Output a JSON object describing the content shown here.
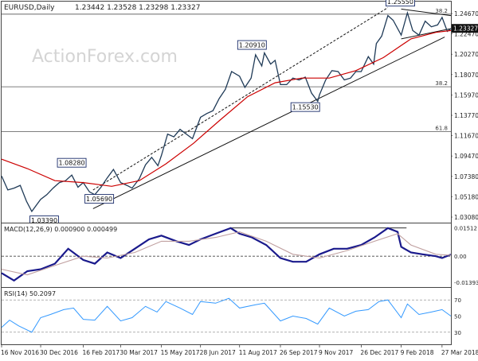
{
  "chart_data": [
    {
      "type": "line",
      "panel": "price",
      "title": "EURUSD,Daily",
      "ohlc_label": "1.23442 1.23528 1.23298 1.23327",
      "watermark": "ActionForex.com",
      "x_dates": [
        "2016-11-16",
        "2016-12-30",
        "2017-02-16",
        "2017-03-30",
        "2017-05-15",
        "2017-06-28",
        "2017-08-11",
        "2017-09-26",
        "2017-11-09",
        "2017-12-26",
        "2018-02-09",
        "2018-03-27",
        "2018-04-06"
      ],
      "x_tick_labels": [
        "16 Nov 2016",
        "30 Dec 2016",
        "16 Feb 2017",
        "30 Mar 2017",
        "15 May 2017",
        "28 Jun 2017",
        "11 Aug 2017",
        "26 Sep 2017",
        "9 Nov 2017",
        "26 Dec 2017",
        "9 Feb 2018",
        "27 Mar 2018"
      ],
      "y_tick_labels": [
        "1.24670",
        "1.22470",
        "1.20270",
        "1.18070",
        "1.15970",
        "1.13770",
        "1.11670",
        "1.09470",
        "1.07380",
        "1.05180",
        "1.03080"
      ],
      "ylim": [
        1.025,
        1.262
      ],
      "last_price": "1.23327",
      "series": [
        {
          "role": "price",
          "color": "#1f3a57",
          "points": [
            [
              "2016-11-16",
              1.075
            ],
            [
              "2016-11-23",
              1.06
            ],
            [
              "2016-11-30",
              1.062
            ],
            [
              "2016-12-07",
              1.065
            ],
            [
              "2016-12-14",
              1.048
            ],
            [
              "2016-12-20",
              1.037
            ],
            [
              "2016-12-30",
              1.05
            ],
            [
              "2017-01-06",
              1.055
            ],
            [
              "2017-01-13",
              1.062
            ],
            [
              "2017-01-20",
              1.068
            ],
            [
              "2017-01-27",
              1.07
            ],
            [
              "2017-02-03",
              1.076
            ],
            [
              "2017-02-10",
              1.063
            ],
            [
              "2017-02-16",
              1.068
            ],
            [
              "2017-02-23",
              1.058
            ],
            [
              "2017-03-01",
              1.055
            ],
            [
              "2017-03-08",
              1.063
            ],
            [
              "2017-03-15",
              1.073
            ],
            [
              "2017-03-22",
              1.082
            ],
            [
              "2017-03-30",
              1.068
            ],
            [
              "2017-04-06",
              1.065
            ],
            [
              "2017-04-12",
              1.062
            ],
            [
              "2017-04-20",
              1.072
            ],
            [
              "2017-04-27",
              1.087
            ],
            [
              "2017-05-04",
              1.095
            ],
            [
              "2017-05-11",
              1.086
            ],
            [
              "2017-05-15",
              1.097
            ],
            [
              "2017-05-22",
              1.12
            ],
            [
              "2017-05-29",
              1.117
            ],
            [
              "2017-06-05",
              1.125
            ],
            [
              "2017-06-12",
              1.12
            ],
            [
              "2017-06-19",
              1.115
            ],
            [
              "2017-06-28",
              1.138
            ],
            [
              "2017-07-05",
              1.142
            ],
            [
              "2017-07-12",
              1.145
            ],
            [
              "2017-07-19",
              1.158
            ],
            [
              "2017-07-26",
              1.168
            ],
            [
              "2017-08-02",
              1.187
            ],
            [
              "2017-08-11",
              1.182
            ],
            [
              "2017-08-17",
              1.17
            ],
            [
              "2017-08-24",
              1.18
            ],
            [
              "2017-08-29",
              1.205
            ],
            [
              "2017-09-05",
              1.193
            ],
            [
              "2017-09-08",
              1.207
            ],
            [
              "2017-09-15",
              1.195
            ],
            [
              "2017-09-20",
              1.199
            ],
            [
              "2017-09-26",
              1.173
            ],
            [
              "2017-10-03",
              1.173
            ],
            [
              "2017-10-10",
              1.18
            ],
            [
              "2017-10-17",
              1.178
            ],
            [
              "2017-10-24",
              1.181
            ],
            [
              "2017-10-31",
              1.164
            ],
            [
              "2017-11-07",
              1.155
            ],
            [
              "2017-11-09",
              1.162
            ],
            [
              "2017-11-16",
              1.178
            ],
            [
              "2017-11-23",
              1.188
            ],
            [
              "2017-11-30",
              1.187
            ],
            [
              "2017-12-07",
              1.178
            ],
            [
              "2017-12-14",
              1.18
            ],
            [
              "2017-12-20",
              1.187
            ],
            [
              "2017-12-26",
              1.187
            ],
            [
              "2018-01-03",
              1.203
            ],
            [
              "2018-01-09",
              1.195
            ],
            [
              "2018-01-12",
              1.217
            ],
            [
              "2018-01-18",
              1.225
            ],
            [
              "2018-01-25",
              1.247
            ],
            [
              "2018-01-31",
              1.242
            ],
            [
              "2018-02-09",
              1.226
            ],
            [
              "2018-02-16",
              1.25
            ],
            [
              "2018-02-22",
              1.231
            ],
            [
              "2018-03-01",
              1.226
            ],
            [
              "2018-03-08",
              1.241
            ],
            [
              "2018-03-15",
              1.235
            ],
            [
              "2018-03-22",
              1.237
            ],
            [
              "2018-03-27",
              1.245
            ],
            [
              "2018-04-02",
              1.23
            ],
            [
              "2018-04-06",
              1.233
            ]
          ]
        },
        {
          "role": "moving-average",
          "color": "#cc0000",
          "points": [
            [
              "2016-11-16",
              1.093
            ],
            [
              "2016-12-15",
              1.083
            ],
            [
              "2017-01-15",
              1.07
            ],
            [
              "2017-02-16",
              1.068
            ],
            [
              "2017-03-20",
              1.064
            ],
            [
              "2017-04-20",
              1.07
            ],
            [
              "2017-05-20",
              1.088
            ],
            [
              "2017-06-20",
              1.11
            ],
            [
              "2017-07-20",
              1.135
            ],
            [
              "2017-08-20",
              1.16
            ],
            [
              "2017-09-20",
              1.175
            ],
            [
              "2017-10-20",
              1.18
            ],
            [
              "2017-11-20",
              1.18
            ],
            [
              "2017-12-20",
              1.188
            ],
            [
              "2018-01-20",
              1.202
            ],
            [
              "2018-02-20",
              1.222
            ],
            [
              "2018-03-20",
              1.229
            ],
            [
              "2018-04-06",
              1.231
            ]
          ]
        }
      ],
      "annotations": [
        {
          "label": "1.25550",
          "date": "2018-02-08",
          "price": 1.2555
        },
        {
          "label": "1.20910",
          "date": "2017-08-25",
          "price": 1.2091
        },
        {
          "label": "1.15530",
          "date": "2017-10-24",
          "price": 1.1553
        },
        {
          "label": "1.08280",
          "date": "2017-02-03",
          "price": 1.0828
        },
        {
          "label": "1.05690",
          "date": "2017-03-06",
          "price": 1.0569
        },
        {
          "label": "1.03390",
          "date": "2017-01-03",
          "price": 1.0339
        }
      ],
      "fib_levels": [
        {
          "label": "38.2",
          "price": 1.2485
        },
        {
          "label": "38.2",
          "price": 1.1707
        },
        {
          "label": "61.8",
          "price": 1.1225
        }
      ],
      "trendlines": [
        {
          "role": "lower-channel",
          "from": [
            "2017-02-27",
            1.04
          ],
          "to": [
            "2018-03-30",
            1.224
          ]
        },
        {
          "role": "upper-channel",
          "from": [
            "2017-02-27",
            1.06
          ],
          "to": [
            "2018-01-25",
            1.2555
          ]
        },
        {
          "role": "triangle-top",
          "from": [
            "2018-02-09",
            1.254
          ],
          "to": [
            "2018-04-06",
            1.247
          ]
        },
        {
          "role": "triangle-bottom",
          "from": [
            "2018-02-09",
            1.222
          ],
          "to": [
            "2018-04-06",
            1.233
          ]
        }
      ]
    },
    {
      "type": "line",
      "panel": "macd",
      "title": "MACD(12,26,9) 0.000900 0.000499",
      "y_tick_labels": [
        "0.01512",
        "0.00",
        "-0.01393"
      ],
      "ylim": [
        -0.0165,
        0.0175
      ],
      "zero_line": 0.0,
      "resistance_line": 0.0151,
      "series": [
        {
          "role": "macd",
          "color": "#1a1a8c",
          "points": [
            [
              "2016-11-16",
              -0.009
            ],
            [
              "2016-11-30",
              -0.013
            ],
            [
              "2016-12-15",
              -0.008
            ],
            [
              "2016-12-30",
              -0.007
            ],
            [
              "2017-01-15",
              -0.004
            ],
            [
              "2017-01-30",
              0.004
            ],
            [
              "2017-02-16",
              -0.002
            ],
            [
              "2017-03-01",
              -0.004
            ],
            [
              "2017-03-15",
              0.002
            ],
            [
              "2017-03-30",
              -0.001
            ],
            [
              "2017-04-15",
              0.004
            ],
            [
              "2017-05-01",
              0.009
            ],
            [
              "2017-05-15",
              0.011
            ],
            [
              "2017-06-01",
              0.008
            ],
            [
              "2017-06-15",
              0.006
            ],
            [
              "2017-06-28",
              0.009
            ],
            [
              "2017-07-15",
              0.012
            ],
            [
              "2017-08-01",
              0.015
            ],
            [
              "2017-08-11",
              0.012
            ],
            [
              "2017-08-25",
              0.01
            ],
            [
              "2017-09-10",
              0.006
            ],
            [
              "2017-09-26",
              -0.001
            ],
            [
              "2017-10-10",
              -0.003
            ],
            [
              "2017-10-25",
              -0.003
            ],
            [
              "2017-11-09",
              0.001
            ],
            [
              "2017-11-25",
              0.004
            ],
            [
              "2017-12-10",
              0.004
            ],
            [
              "2017-12-26",
              0.006
            ],
            [
              "2018-01-10",
              0.01
            ],
            [
              "2018-01-25",
              0.015
            ],
            [
              "2018-02-05",
              0.013
            ],
            [
              "2018-02-09",
              0.005
            ],
            [
              "2018-02-20",
              0.002
            ],
            [
              "2018-03-05",
              0.001
            ],
            [
              "2018-03-20",
              0.0
            ],
            [
              "2018-03-27",
              -0.001
            ],
            [
              "2018-04-06",
              0.0009
            ]
          ]
        },
        {
          "role": "signal",
          "color": "#c0a0a0",
          "points": [
            [
              "2016-11-16",
              -0.007
            ],
            [
              "2016-12-15",
              -0.01
            ],
            [
              "2017-01-15",
              -0.005
            ],
            [
              "2017-02-16",
              0.0
            ],
            [
              "2017-03-15",
              -0.001
            ],
            [
              "2017-04-15",
              0.002
            ],
            [
              "2017-05-15",
              0.008
            ],
            [
              "2017-06-15",
              0.008
            ],
            [
              "2017-07-15",
              0.01
            ],
            [
              "2017-08-11",
              0.013
            ],
            [
              "2017-09-10",
              0.008
            ],
            [
              "2017-10-10",
              0.001
            ],
            [
              "2017-11-09",
              -0.001
            ],
            [
              "2017-12-10",
              0.003
            ],
            [
              "2018-01-10",
              0.008
            ],
            [
              "2018-02-05",
              0.012
            ],
            [
              "2018-02-20",
              0.006
            ],
            [
              "2018-03-20",
              0.001
            ],
            [
              "2018-04-06",
              0.0005
            ]
          ]
        }
      ]
    },
    {
      "type": "line",
      "panel": "rsi",
      "title": "RSI(14) 50.2097",
      "y_tick_labels": [
        "70",
        "50",
        "30"
      ],
      "ylim": [
        15,
        85
      ],
      "levels": [
        70,
        30
      ],
      "series": [
        {
          "role": "rsi",
          "color": "#3399ff",
          "points": [
            [
              "2016-11-16",
              36
            ],
            [
              "2016-11-25",
              45
            ],
            [
              "2016-12-05",
              38
            ],
            [
              "2016-12-20",
              30
            ],
            [
              "2016-12-30",
              48
            ],
            [
              "2017-01-10",
              52
            ],
            [
              "2017-01-25",
              58
            ],
            [
              "2017-02-05",
              60
            ],
            [
              "2017-02-16",
              46
            ],
            [
              "2017-03-01",
              45
            ],
            [
              "2017-03-15",
              62
            ],
            [
              "2017-03-30",
              44
            ],
            [
              "2017-04-12",
              48
            ],
            [
              "2017-04-27",
              62
            ],
            [
              "2017-05-10",
              55
            ],
            [
              "2017-05-20",
              68
            ],
            [
              "2017-06-05",
              60
            ],
            [
              "2017-06-19",
              52
            ],
            [
              "2017-06-28",
              68
            ],
            [
              "2017-07-15",
              66
            ],
            [
              "2017-07-30",
              72
            ],
            [
              "2017-08-11",
              60
            ],
            [
              "2017-08-29",
              64
            ],
            [
              "2017-09-08",
              66
            ],
            [
              "2017-09-26",
              44
            ],
            [
              "2017-10-10",
              50
            ],
            [
              "2017-10-25",
              47
            ],
            [
              "2017-11-07",
              40
            ],
            [
              "2017-11-20",
              60
            ],
            [
              "2017-12-07",
              50
            ],
            [
              "2017-12-20",
              56
            ],
            [
              "2018-01-03",
              58
            ],
            [
              "2018-01-15",
              68
            ],
            [
              "2018-01-25",
              70
            ],
            [
              "2018-02-09",
              48
            ],
            [
              "2018-02-16",
              65
            ],
            [
              "2018-03-01",
              52
            ],
            [
              "2018-03-15",
              55
            ],
            [
              "2018-03-27",
              58
            ],
            [
              "2018-04-06",
              50
            ]
          ]
        }
      ]
    }
  ]
}
